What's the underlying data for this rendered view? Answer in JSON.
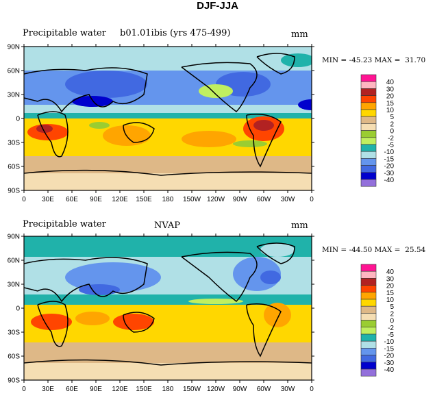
{
  "title": "DJF-JJA",
  "panels": [
    {
      "left_title": "Precipitable water",
      "center_title": "b01.01ibis (yrs 475-499)",
      "units": "mm",
      "min": "-45.23",
      "max": "31.70"
    },
    {
      "left_title": "Precipitable water",
      "center_title": "NVAP",
      "units": "mm",
      "min": "-44.50",
      "max": "25.54"
    }
  ],
  "minmax_labels": {
    "min": "MIN =",
    "max": "MAX ="
  },
  "lat_labels": [
    "90N",
    "60N",
    "30N",
    "0",
    "30S",
    "60S",
    "90S"
  ],
  "lon_labels": [
    "0",
    "30E",
    "60E",
    "90E",
    "120E",
    "150E",
    "180",
    "150W",
    "120W",
    "90W",
    "60W",
    "30W",
    "0"
  ],
  "colorbar": {
    "labels": [
      "40",
      "30",
      "20",
      "15",
      "10",
      "5",
      "2",
      "0",
      "-2",
      "-5",
      "-10",
      "-15",
      "-20",
      "-30",
      "-40"
    ],
    "colors": [
      "#ff1493",
      "#ffb6c1",
      "#b22222",
      "#ff4500",
      "#ffa500",
      "#ffd700",
      "#deb887",
      "#f5deb3",
      "#9acd32",
      "#c0ef60",
      "#20b2aa",
      "#b0e0e6",
      "#6495ed",
      "#4169e1",
      "#0000cd",
      "#9370db"
    ]
  }
}
